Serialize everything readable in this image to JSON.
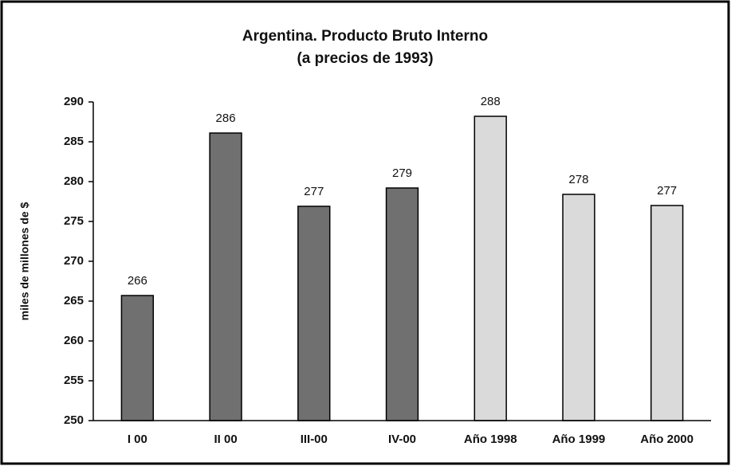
{
  "chart_data": {
    "type": "bar",
    "title": "Argentina. Producto Bruto Interno",
    "subtitle": "(a precios de 1993)",
    "y_label": "miles de millones de $",
    "categories": [
      "I 00",
      "II 00",
      "III-00",
      "IV-00",
      "Año 1998",
      "Año 1999",
      "Año 2000"
    ],
    "values": [
      265.7,
      286.1,
      276.9,
      279.2,
      288.2,
      278.4,
      277.0
    ],
    "value_labels": [
      "266",
      "286",
      "277",
      "279",
      "288",
      "278",
      "277"
    ],
    "colors": [
      "#707070",
      "#707070",
      "#707070",
      "#707070",
      "#dadada",
      "#dadada",
      "#dadada"
    ],
    "ylim": [
      250,
      290
    ],
    "yticks": [
      250,
      255,
      260,
      265,
      270,
      275,
      280,
      285,
      290
    ],
    "grid": false
  }
}
